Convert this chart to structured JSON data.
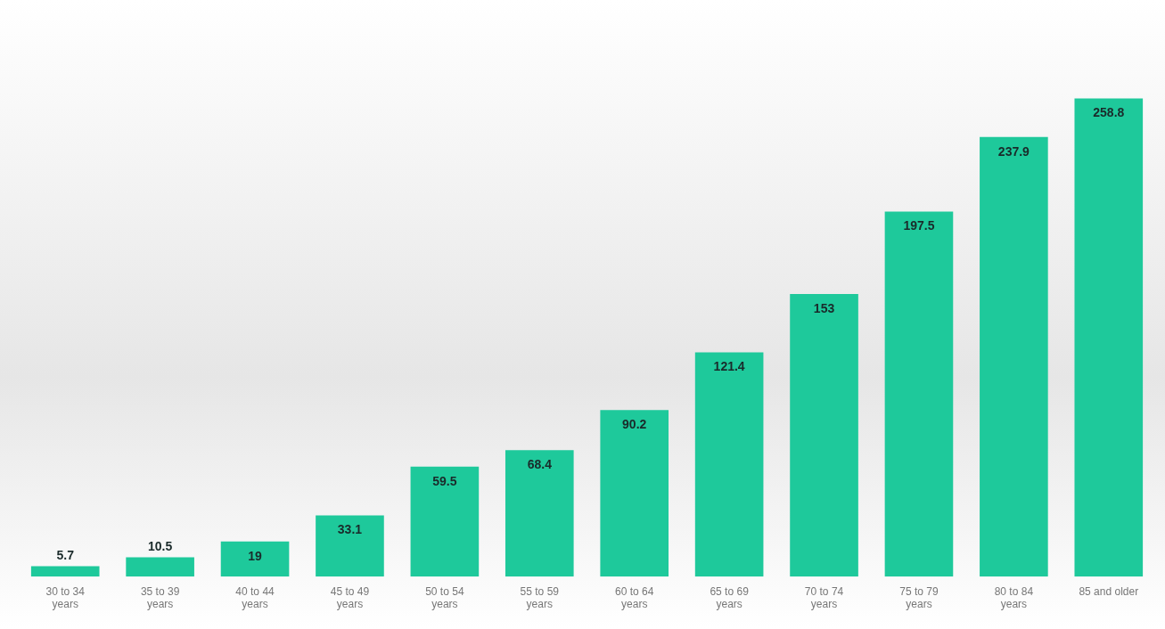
{
  "chart_data": {
    "type": "bar",
    "categories": [
      "30 to 34 years",
      "35 to 39 years",
      "40 to 44 years",
      "45 to 49 years",
      "50 to 54 years",
      "55 to 59 years",
      "60 to 64 years",
      "65 to 69 years",
      "70 to 74 years",
      "75 to 79 years",
      "80 to 84 years",
      "85 and older"
    ],
    "values": [
      5.7,
      10.5,
      19,
      33.1,
      59.5,
      68.4,
      90.2,
      121.4,
      153,
      197.5,
      237.9,
      258.8
    ],
    "color": "#1ec99b",
    "data_labels": true,
    "grid": false,
    "legend": false
  }
}
